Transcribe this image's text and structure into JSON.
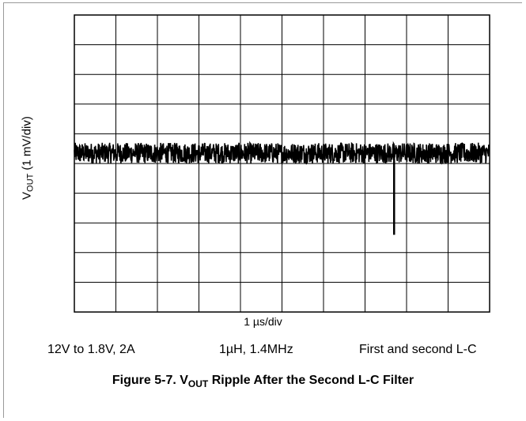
{
  "chart_data": {
    "type": "line",
    "title": "",
    "ylabel": {
      "main": "V",
      "sub": "OUT",
      "rest": " (1 mV/div)"
    },
    "xlabel": "1 µs/div",
    "grid": true,
    "divisions": {
      "x": 10,
      "y": 10
    },
    "xlim": [
      0,
      10
    ],
    "ylim": [
      -5,
      5
    ],
    "series": [
      {
        "values_desc": "noise band around offset",
        "baseline": 0.35,
        "noise_amplitude": 0.35,
        "spikes": [
          {
            "x": 7.7,
            "y": -2.4
          }
        ]
      }
    ]
  },
  "conditions": [
    "12V to 1.8V, 2A",
    "1µH, 1.4MHz",
    "First and second L-C"
  ],
  "caption": {
    "prefix": "Figure 5-7. V",
    "sub": "OUT",
    "suffix": " Ripple After the Second L-C Filter"
  },
  "colors": {
    "trace": "#000000",
    "grid": "#000000"
  }
}
